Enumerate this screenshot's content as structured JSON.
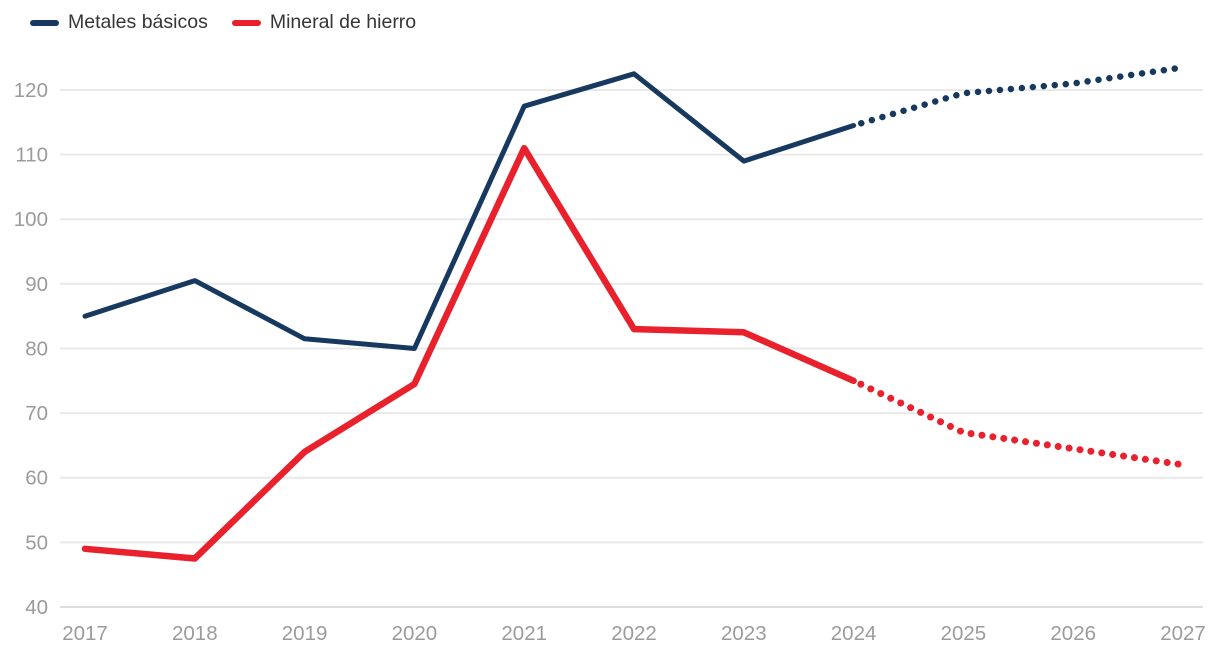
{
  "chart_data": {
    "type": "line",
    "x": [
      2017,
      2018,
      2019,
      2020,
      2021,
      2022,
      2023,
      2024,
      2025,
      2026,
      2027
    ],
    "series": [
      {
        "name": "Metales básicos",
        "color": "#17395f",
        "values": [
          85,
          90.5,
          81.5,
          80,
          117.5,
          122.5,
          109,
          114.5,
          119.5,
          121,
          123.5
        ]
      },
      {
        "name": "Mineral de hierro",
        "color": "#e8212d",
        "values": [
          49,
          47.5,
          64,
          74.5,
          111,
          83,
          82.5,
          75,
          67,
          64.5,
          62
        ]
      }
    ],
    "forecast_start_index": 7,
    "forecast_style": "dotted",
    "yticks": [
      40,
      50,
      60,
      70,
      80,
      90,
      100,
      110,
      120
    ],
    "ylim": [
      40,
      126
    ],
    "grid": "horizontal",
    "legend_position": "top-left",
    "axis_text_color": "#9b9b9b",
    "gridline_color": "#e9e9e9",
    "baseline_color": "#dedede"
  }
}
